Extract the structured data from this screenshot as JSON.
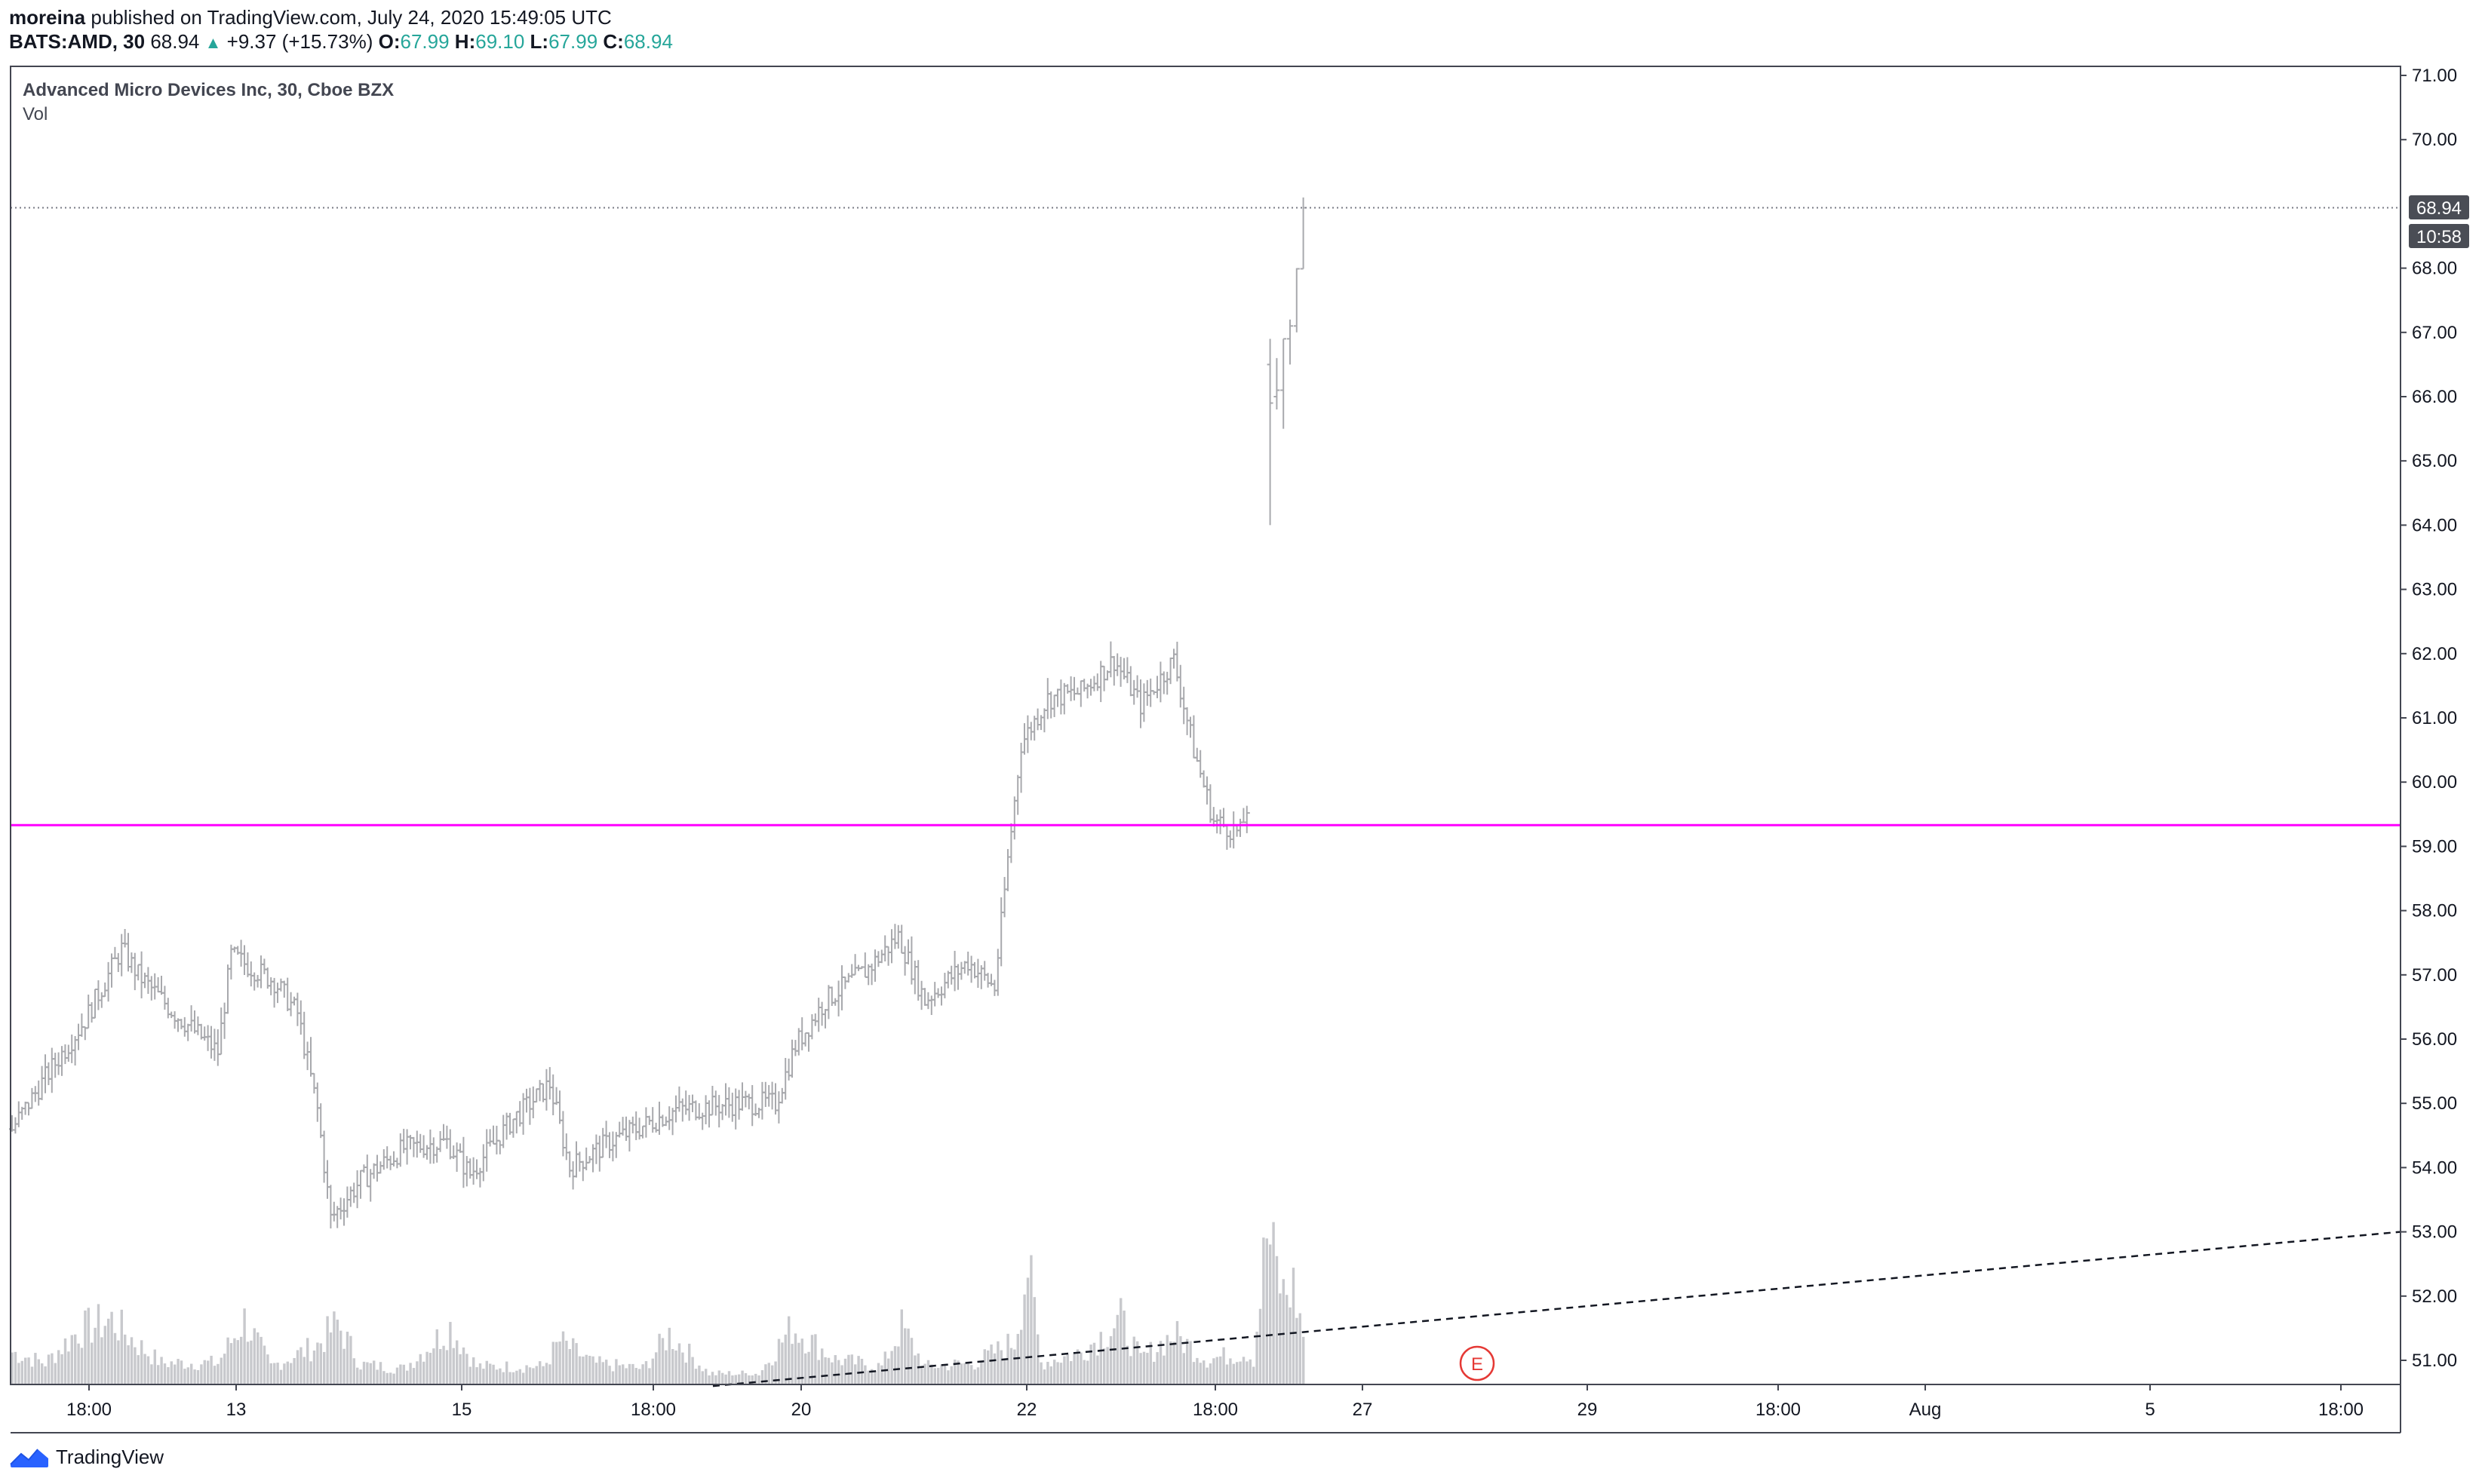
{
  "header": {
    "publisher": "moreina",
    "published_text": "published on TradingView.com, July 24, 2020 15:49:05 UTC"
  },
  "quote": {
    "symbol": "BATS:AMD, 30",
    "last": "68.94",
    "change": "+9.37 (+15.73%)",
    "o_label": "O:",
    "o": "67.99",
    "h_label": "H:",
    "h": "69.10",
    "l_label": "L:",
    "l": "67.99",
    "c_label": "C:",
    "c": "68.94"
  },
  "legend": {
    "title": "Advanced Micro Devices Inc, 30, Cboe BZX",
    "volume": "Vol"
  },
  "brand": {
    "name": "TradingView"
  },
  "colors": {
    "bars": "#a8a9ad",
    "volume": "#c8c9cd",
    "level_line": "#ff00ff",
    "trend_line": "#131722",
    "earnings_marker": "#e53935",
    "price_label_bg": "#4a4d55"
  },
  "chart_data": {
    "type": "bar",
    "symbol": "BATS:AMD",
    "interval": "30",
    "y_axis": {
      "position": "right",
      "range": [
        50.6,
        71.1
      ],
      "ticks": [
        "51.00",
        "52.00",
        "53.00",
        "54.00",
        "55.00",
        "56.00",
        "57.00",
        "58.00",
        "59.00",
        "60.00",
        "61.00",
        "62.00",
        "63.00",
        "64.00",
        "65.00",
        "66.00",
        "67.00",
        "68.00",
        "70.00",
        "71.00"
      ]
    },
    "x_axis": {
      "ticks": [
        "18:00",
        "13",
        "15",
        "18:00",
        "20",
        "22",
        "18:00",
        "27",
        "29",
        "18:00",
        "Aug",
        "5",
        "18:00"
      ]
    },
    "last_price_label": "68.94",
    "countdown_label": "10:58",
    "horizontal_level": 59.33,
    "trend_line": {
      "from": 50.6,
      "to": 53.0,
      "style": "dashed"
    },
    "earnings_marker": "E",
    "price_series_anchors": [
      [
        0,
        54.6
      ],
      [
        10,
        55.4
      ],
      [
        22,
        56.3
      ],
      [
        33,
        57.4
      ],
      [
        38,
        57.0
      ],
      [
        49,
        56.4
      ],
      [
        62,
        55.8
      ],
      [
        66,
        57.3
      ],
      [
        79,
        56.9
      ],
      [
        86,
        56.4
      ],
      [
        92,
        54.9
      ],
      [
        96,
        53.2
      ],
      [
        105,
        53.8
      ],
      [
        118,
        54.3
      ],
      [
        131,
        54.4
      ],
      [
        138,
        53.9
      ],
      [
        150,
        54.7
      ],
      [
        162,
        55.3
      ],
      [
        168,
        54.0
      ],
      [
        180,
        54.4
      ],
      [
        200,
        54.9
      ],
      [
        220,
        55.0
      ],
      [
        230,
        55.0
      ],
      [
        236,
        55.9
      ],
      [
        245,
        56.6
      ],
      [
        258,
        57.1
      ],
      [
        267,
        57.6
      ],
      [
        275,
        56.6
      ],
      [
        288,
        57.2
      ],
      [
        296,
        56.8
      ],
      [
        300,
        58.8
      ],
      [
        304,
        60.6
      ],
      [
        312,
        61.3
      ],
      [
        322,
        61.4
      ],
      [
        332,
        61.9
      ],
      [
        340,
        61.2
      ],
      [
        350,
        61.9
      ],
      [
        356,
        60.5
      ],
      [
        362,
        59.4
      ],
      [
        370,
        59.2
      ],
      [
        372,
        59.6
      ]
    ],
    "gap_bars": [
      [
        379,
        64.0,
        66.9,
        66.5,
        65.9
      ],
      [
        381,
        65.8,
        66.6,
        66.0,
        66.1
      ],
      [
        383,
        65.5,
        66.9,
        66.1,
        66.9
      ],
      [
        385,
        66.5,
        67.2,
        66.9,
        67.1
      ],
      [
        387,
        67.0,
        68.0,
        67.1,
        67.99
      ],
      [
        389,
        67.99,
        69.1,
        67.99,
        68.94
      ]
    ],
    "volume_series_anchors": [
      [
        0,
        45
      ],
      [
        10,
        30
      ],
      [
        20,
        75
      ],
      [
        30,
        90
      ],
      [
        38,
        55
      ],
      [
        45,
        30
      ],
      [
        62,
        30
      ],
      [
        70,
        90
      ],
      [
        78,
        25
      ],
      [
        92,
        55
      ],
      [
        98,
        85
      ],
      [
        105,
        28
      ],
      [
        118,
        22
      ],
      [
        132,
        80
      ],
      [
        140,
        25
      ],
      [
        160,
        25
      ],
      [
        165,
        60
      ],
      [
        175,
        30
      ],
      [
        190,
        22
      ],
      [
        198,
        70
      ],
      [
        210,
        15
      ],
      [
        225,
        15
      ],
      [
        235,
        80
      ],
      [
        248,
        35
      ],
      [
        262,
        25
      ],
      [
        268,
        80
      ],
      [
        275,
        25
      ],
      [
        290,
        30
      ],
      [
        302,
        60
      ],
      [
        306,
        168
      ],
      [
        310,
        30
      ],
      [
        322,
        45
      ],
      [
        334,
        90
      ],
      [
        340,
        35
      ],
      [
        350,
        70
      ],
      [
        360,
        35
      ],
      [
        372,
        45
      ],
      [
        374,
        35
      ],
      [
        378,
        210
      ],
      [
        383,
        125
      ],
      [
        386,
        135
      ],
      [
        389,
        70
      ]
    ]
  }
}
